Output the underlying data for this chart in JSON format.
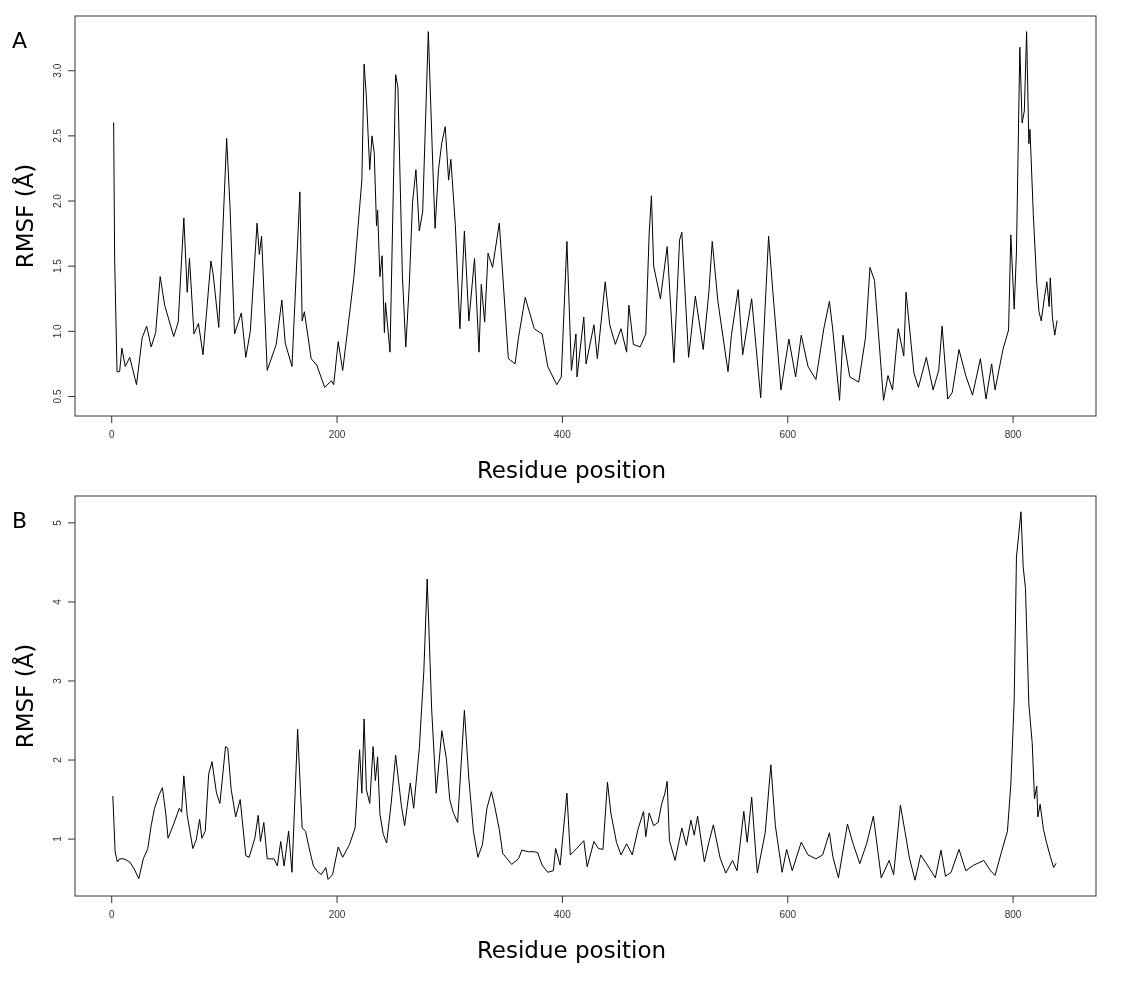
{
  "chart_data": [
    {
      "type": "line",
      "title": "A",
      "xlabel": "Residue position",
      "ylabel": "RMSF (Å)",
      "xlim": [
        -32.6,
        873.6
      ],
      "ylim": [
        0.35,
        3.42
      ],
      "xticks": [
        0,
        200,
        400,
        600,
        800
      ],
      "yticks": [
        0.5,
        {
          "value": 1,
          "label": "1.0"
        },
        1.5,
        {
          "value": 2,
          "label": "2.0"
        },
        2.5,
        {
          "value": 3,
          "label": "3.0"
        }
      ],
      "series": [
        {
          "color": "#000000",
          "x": [
            1.7,
            2.6,
            4.7,
            7,
            9,
            12,
            16,
            22,
            27,
            31,
            35,
            39,
            43,
            47,
            55,
            59,
            64,
            67,
            69,
            73,
            77,
            81,
            88,
            90,
            95,
            102,
            105,
            109,
            115,
            119,
            123,
            129,
            131,
            133,
            138,
            146,
            151,
            154,
            160,
            167,
            169,
            171,
            177,
            182,
            189,
            195,
            197,
            201,
            205,
            212,
            215,
            222,
            224,
            226,
            229,
            231,
            233,
            235,
            236,
            238,
            240,
            242,
            243,
            247,
            252,
            254,
            258,
            261,
            264,
            267,
            270,
            273,
            276,
            281,
            285,
            287,
            290,
            293,
            296,
            299,
            301,
            305,
            309,
            313,
            317,
            322,
            326,
            328,
            331,
            334,
            338,
            344,
            352,
            358,
            361,
            367,
            375,
            382,
            387,
            395,
            399,
            404,
            408,
            412,
            413,
            419,
            421,
            428,
            431,
            438,
            442,
            447,
            452,
            457,
            459,
            463,
            469,
            474,
            477,
            479,
            481,
            487,
            493,
            499,
            504,
            506,
            512,
            518,
            525,
            530,
            533,
            538,
            547,
            550,
            556,
            560,
            568,
            576,
            583,
            587,
            594,
            601,
            607,
            612,
            618,
            625,
            632,
            637,
            640,
            646,
            649,
            655,
            663,
            669,
            673,
            677,
            685,
            689,
            693,
            698,
            703,
            705,
            712,
            716,
            723,
            729,
            734,
            737,
            742,
            746,
            752,
            758,
            764,
            771,
            776,
            781,
            784,
            791,
            796,
            798,
            801,
            803,
            806,
            808,
            810,
            812,
            814,
            815,
            818,
            821,
            823,
            825,
            828,
            830,
            832,
            833,
            835,
            837,
            839
          ],
          "values": [
            2.6,
            1.55,
            0.69,
            0.69,
            0.87,
            0.73,
            0.8,
            0.59,
            0.95,
            1.04,
            0.88,
            0.99,
            1.42,
            1.2,
            0.96,
            1.07,
            1.87,
            1.3,
            1.56,
            0.98,
            1.06,
            0.82,
            1.54,
            1.44,
            1.03,
            2.48,
            1.95,
            0.98,
            1.14,
            0.8,
            1.0,
            1.83,
            1.59,
            1.73,
            0.7,
            0.9,
            1.24,
            0.91,
            0.73,
            2.07,
            1.08,
            1.15,
            0.79,
            0.74,
            0.57,
            0.62,
            0.59,
            0.92,
            0.7,
            1.2,
            1.42,
            2.16,
            3.05,
            2.8,
            2.24,
            2.5,
            2.37,
            1.81,
            1.93,
            1.42,
            1.58,
            0.99,
            1.22,
            0.84,
            2.97,
            2.87,
            1.42,
            0.88,
            1.34,
            1.99,
            2.24,
            1.77,
            1.92,
            3.3,
            2.26,
            1.79,
            2.24,
            2.45,
            2.57,
            2.16,
            2.32,
            1.81,
            1.02,
            1.77,
            1.08,
            1.56,
            0.84,
            1.36,
            1.07,
            1.6,
            1.49,
            1.83,
            0.79,
            0.75,
            0.95,
            1.26,
            1.02,
            0.98,
            0.73,
            0.59,
            0.65,
            1.69,
            0.7,
            0.98,
            0.65,
            1.11,
            0.75,
            1.05,
            0.79,
            1.38,
            1.05,
            0.9,
            1.02,
            0.84,
            1.2,
            0.9,
            0.88,
            0.98,
            1.75,
            2.04,
            1.5,
            1.25,
            1.65,
            0.76,
            1.7,
            1.76,
            0.8,
            1.27,
            0.86,
            1.3,
            1.69,
            1.23,
            0.69,
            0.97,
            1.32,
            0.82,
            1.25,
            0.49,
            1.73,
            1.28,
            0.55,
            0.94,
            0.65,
            0.97,
            0.73,
            0.63,
            1.02,
            1.23,
            1.01,
            0.47,
            0.97,
            0.65,
            0.61,
            0.95,
            1.49,
            1.39,
            0.47,
            0.66,
            0.55,
            1.02,
            0.81,
            1.3,
            0.68,
            0.57,
            0.8,
            0.55,
            0.7,
            1.04,
            0.48,
            0.53,
            0.86,
            0.66,
            0.51,
            0.79,
            0.48,
            0.75,
            0.55,
            0.86,
            1.01,
            1.74,
            1.17,
            1.61,
            3.18,
            2.6,
            2.69,
            3.3,
            2.44,
            2.55,
            1.89,
            1.37,
            1.15,
            1.08,
            1.27,
            1.38,
            1.19,
            1.41,
            1.1,
            0.97,
            1.08
          ]
        }
      ]
    },
    {
      "type": "line",
      "title": "B",
      "xlabel": "Residue position",
      "ylabel": "RMSF (Å)",
      "xlim": [
        -32.6,
        873.6
      ],
      "ylim": [
        0.28,
        5.34
      ],
      "xticks": [
        0,
        200,
        400,
        600,
        800
      ],
      "yticks": [
        1,
        2,
        3,
        4,
        5
      ],
      "series": [
        {
          "color": "#000000",
          "x": [
            1,
            3,
            5,
            7,
            11,
            16,
            20,
            24,
            28,
            32,
            35,
            38,
            42,
            45,
            48,
            50,
            55,
            60,
            62,
            64,
            67,
            72,
            75,
            78,
            80,
            83,
            86,
            89,
            93,
            96,
            101,
            103,
            106,
            110,
            114,
            119,
            122,
            127,
            130,
            132,
            135,
            138,
            144,
            147,
            150,
            153,
            157,
            160,
            165,
            169,
            172,
            175,
            179,
            182,
            186,
            190,
            192,
            196,
            201,
            205,
            211,
            216,
            220,
            222,
            224,
            226,
            229,
            232,
            234,
            236,
            238,
            241,
            244,
            248,
            252,
            257,
            260,
            265,
            268,
            273,
            277,
            280,
            284,
            288,
            293,
            297,
            300,
            303,
            307,
            313,
            317,
            321,
            325,
            329,
            333,
            337,
            340,
            344,
            347,
            351,
            355,
            361,
            364,
            370,
            375,
            378,
            382,
            387,
            392,
            394,
            398,
            404,
            407,
            412,
            419,
            422,
            428,
            432,
            436,
            440,
            443,
            448,
            452,
            457,
            462,
            467,
            472,
            474,
            477,
            481,
            485,
            488,
            491,
            493,
            495,
            500,
            506,
            510,
            514,
            517,
            520,
            526,
            530,
            534,
            540,
            545,
            551,
            555,
            561,
            564,
            568,
            571,
            573,
            580,
            585,
            589,
            595,
            599,
            604,
            612,
            618,
            625,
            631,
            637,
            640,
            645,
            653,
            658,
            664,
            670,
            676,
            683,
            690,
            694,
            700,
            704,
            708,
            713,
            718,
            724,
            731,
            736,
            740,
            745,
            752,
            758,
            765,
            774,
            780,
            784,
            789,
            795,
            798,
            801,
            803,
            805,
            807,
            809,
            811,
            814,
            817,
            819,
            821,
            822,
            824,
            827,
            830,
            833,
            836,
            838
          ],
          "values": [
            1.54,
            0.84,
            0.71,
            0.75,
            0.75,
            0.71,
            0.62,
            0.5,
            0.75,
            0.88,
            1.17,
            1.39,
            1.56,
            1.65,
            1.32,
            1.01,
            1.19,
            1.39,
            1.34,
            1.8,
            1.3,
            0.88,
            0.99,
            1.25,
            1.01,
            1.1,
            1.82,
            1.98,
            1.58,
            1.45,
            2.17,
            2.15,
            1.63,
            1.28,
            1.5,
            0.79,
            0.77,
            1.01,
            1.3,
            0.97,
            1.21,
            0.75,
            0.75,
            0.66,
            0.97,
            0.66,
            1.1,
            0.58,
            2.39,
            1.14,
            1.1,
            0.9,
            0.66,
            0.6,
            0.55,
            0.64,
            0.49,
            0.55,
            0.9,
            0.77,
            0.93,
            1.14,
            2.13,
            1.58,
            2.52,
            1.63,
            1.45,
            2.17,
            1.74,
            2.04,
            1.32,
            1.06,
            0.95,
            1.45,
            2.06,
            1.43,
            1.17,
            1.71,
            1.39,
            2.15,
            3.12,
            4.29,
            2.63,
            1.58,
            2.37,
            2.02,
            1.5,
            1.34,
            1.21,
            2.63,
            1.76,
            1.1,
            0.77,
            0.93,
            1.39,
            1.6,
            1.41,
            1.12,
            0.82,
            0.75,
            0.68,
            0.75,
            0.86,
            0.84,
            0.84,
            0.83,
            0.67,
            0.58,
            0.6,
            0.88,
            0.67,
            1.58,
            0.8,
            0.87,
            0.98,
            0.65,
            0.97,
            0.88,
            0.87,
            1.72,
            1.33,
            0.96,
            0.8,
            0.94,
            0.8,
            1.12,
            1.35,
            1.03,
            1.33,
            1.17,
            1.21,
            1.44,
            1.58,
            1.73,
            0.98,
            0.73,
            1.14,
            0.92,
            1.24,
            1.05,
            1.29,
            0.71,
            0.96,
            1.18,
            0.76,
            0.57,
            0.73,
            0.6,
            1.35,
            0.96,
            1.53,
            0.94,
            0.57,
            1.08,
            1.94,
            1.17,
            0.58,
            0.87,
            0.6,
            0.96,
            0.8,
            0.75,
            0.8,
            1.08,
            0.78,
            0.51,
            1.19,
            0.94,
            0.69,
            0.94,
            1.29,
            0.51,
            0.73,
            0.55,
            1.43,
            1.1,
            0.76,
            0.48,
            0.8,
            0.67,
            0.51,
            0.86,
            0.53,
            0.58,
            0.87,
            0.6,
            0.67,
            0.73,
            0.6,
            0.54,
            0.8,
            1.1,
            1.69,
            2.76,
            4.57,
            4.85,
            5.14,
            4.44,
            4.17,
            2.71,
            2.21,
            1.51,
            1.67,
            1.28,
            1.44,
            1.12,
            0.94,
            0.78,
            0.64,
            0.69
          ]
        }
      ]
    }
  ]
}
